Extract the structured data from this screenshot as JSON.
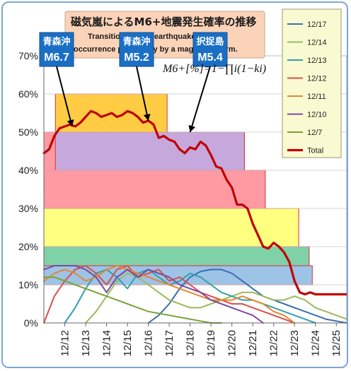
{
  "chart_data": {
    "type": "line",
    "title": "磁気嵐によるM6+地震発生確率の推移",
    "subtitle_lines": [
      "Transition of M6+ earthquake",
      "occurrence probability by a magnetic storm."
    ],
    "formula": "M6+[%]=1−∏i(1−ki)",
    "ylim": [
      0,
      70
    ],
    "y_ticks": [
      0,
      10,
      20,
      30,
      40,
      50,
      60,
      70
    ],
    "y_tick_labels": [
      "0%",
      "10%",
      "20%",
      "30%",
      "40%",
      "50%",
      "60%",
      "70%"
    ],
    "x_range": [
      0,
      14.5
    ],
    "x_ticks": [
      1,
      2,
      3,
      4,
      5,
      6,
      7,
      8,
      9,
      10,
      11,
      12,
      13,
      14
    ],
    "x_tick_labels": [
      "12/12",
      "12/13",
      "12/14",
      "12/15",
      "12/16",
      "12/17",
      "12/18",
      "12/19",
      "12/20",
      "12/21",
      "12/22",
      "12/23",
      "12/24",
      "12/25"
    ],
    "legend_position": "top-right",
    "bands": [
      {
        "x0": 0,
        "x1": 12.85,
        "y0": 10,
        "y1": 15,
        "color": "#9dc3e6"
      },
      {
        "x0": 0,
        "x1": 12.7,
        "y0": 15,
        "y1": 20,
        "color": "#7fd1a8"
      },
      {
        "x0": 0,
        "x1": 12.2,
        "y0": 20,
        "y1": 30,
        "color": "#ffff80"
      },
      {
        "x0": 0,
        "x1": 10.6,
        "y0": 30,
        "y1": 40,
        "color": "#ff9aa3"
      },
      {
        "x0": 0,
        "x1": 9.6,
        "y0": 40,
        "y1": 50,
        "color": "#ff9aa3"
      },
      {
        "x0": 0.55,
        "x1": 9.6,
        "y0": 40,
        "y1": 50,
        "color": "#c6a8dc"
      },
      {
        "x0": 0.55,
        "x1": 5.9,
        "y0": 50,
        "y1": 60,
        "color": "#ffcc44"
      }
    ],
    "series": [
      {
        "name": "12/17",
        "color": "#3a6fb0",
        "x": [
          5,
          5.5,
          6,
          6.5,
          7,
          7.5,
          8,
          8.5,
          9,
          9.5,
          10,
          10.5,
          11,
          11.5,
          12,
          12.5,
          13,
          13.5,
          14,
          14.5
        ],
        "y": [
          0,
          2,
          5,
          9,
          12,
          13.5,
          14,
          14,
          13,
          11,
          9,
          7,
          6,
          5,
          4,
          3,
          2,
          1,
          0.5,
          0
        ]
      },
      {
        "name": "12/14",
        "color": "#9bbb59",
        "x": [
          2,
          2.5,
          3,
          3.5,
          4,
          4.5,
          5,
          5.5,
          6,
          6.5,
          7,
          7.5,
          8,
          8.5,
          9,
          9.5,
          10,
          10.5,
          11,
          11.5,
          12,
          12.5,
          13,
          13.5,
          14,
          14.5
        ],
        "y": [
          0,
          3,
          7,
          11,
          13,
          12,
          10,
          8,
          6,
          5,
          4,
          4,
          5,
          6,
          7,
          8,
          8,
          7,
          6,
          6,
          7,
          6,
          4,
          3,
          2,
          1
        ]
      },
      {
        "name": "12/13",
        "color": "#31a0b0",
        "x": [
          1,
          1.5,
          2,
          2.5,
          3,
          3.5,
          4,
          4.5,
          5,
          5.5,
          6,
          6.5,
          7,
          7.5,
          8,
          8.5,
          9,
          9.5,
          10,
          10.5,
          11,
          11.5,
          12,
          12.5,
          13
        ],
        "y": [
          0,
          4,
          9,
          13,
          14,
          12,
          9,
          13,
          14,
          12,
          10,
          11,
          13,
          12,
          10,
          8,
          7,
          6,
          6,
          5,
          4,
          3,
          2,
          1,
          0
        ]
      },
      {
        "name": "12/12",
        "color": "#d9504a",
        "x": [
          0,
          0.5,
          1,
          1.5,
          2,
          2.5,
          3,
          3.5,
          4,
          4.5,
          5,
          5.5,
          6,
          6.5,
          7,
          7.5,
          8,
          8.5,
          9,
          9.5,
          10,
          10.5,
          11,
          11.5,
          12
        ],
        "y": [
          0,
          7,
          11,
          14,
          15,
          13,
          10,
          14,
          15,
          12,
          13,
          14,
          11,
          12,
          10,
          8,
          7,
          6,
          5,
          5,
          4,
          3,
          2,
          1,
          0
        ]
      },
      {
        "name": "12/11",
        "color": "#e8862d",
        "x": [
          0,
          0.5,
          1,
          1.5,
          2,
          2.5,
          3,
          3.5,
          4,
          4.5,
          5,
          5.5,
          6,
          6.5,
          7,
          7.5,
          8,
          8.5,
          9,
          9.5,
          10,
          10.5,
          11,
          11.5,
          12
        ],
        "y": [
          11,
          13,
          14,
          13,
          11,
          12,
          14,
          15,
          14,
          13,
          12,
          11,
          10,
          9,
          8,
          7,
          6,
          6,
          6,
          7,
          6,
          5,
          3,
          2,
          0
        ]
      },
      {
        "name": "12/10",
        "color": "#7a4aa0",
        "x": [
          0,
          0.5,
          1,
          1.5,
          2,
          2.5,
          3,
          3.5,
          4,
          4.5,
          5,
          5.5,
          6,
          6.5,
          7,
          7.5,
          8,
          8.5,
          9,
          9.5,
          10,
          10.5
        ],
        "y": [
          14,
          15,
          15,
          15,
          14,
          12,
          8,
          12,
          14,
          12,
          14,
          13,
          12,
          10,
          9,
          8,
          6,
          5,
          4,
          3,
          2,
          0
        ]
      },
      {
        "name": "12/7",
        "color": "#7aa23a",
        "x": [
          0,
          0.5,
          1,
          1.5,
          2,
          2.5,
          3,
          3.5,
          4,
          4.5,
          5,
          5.5,
          6,
          6.5,
          7,
          7.5,
          8,
          8.5
        ],
        "y": [
          12,
          12,
          11,
          10,
          9,
          8,
          7,
          6,
          5,
          4,
          3,
          2.5,
          2,
          1.5,
          1,
          0.5,
          0,
          0
        ]
      },
      {
        "name": "Total",
        "color": "#c00000",
        "x": [
          0,
          0.25,
          0.5,
          0.75,
          1,
          1.25,
          1.5,
          1.75,
          2,
          2.25,
          2.5,
          2.75,
          3,
          3.25,
          3.5,
          3.75,
          4,
          4.25,
          4.5,
          4.75,
          5,
          5.25,
          5.5,
          5.75,
          6,
          6.25,
          6.5,
          6.75,
          7,
          7.25,
          7.5,
          7.75,
          8,
          8.25,
          8.5,
          8.75,
          9,
          9.25,
          9.5,
          9.75,
          10,
          10.25,
          10.5,
          10.75,
          11,
          11.25,
          11.5,
          11.75,
          12,
          12.25,
          12.5,
          12.75,
          13,
          13.25,
          13.5,
          13.75,
          14,
          14.25,
          14.5
        ],
        "y": [
          44.5,
          45.5,
          49,
          51,
          51.5,
          52,
          51.5,
          52.5,
          54,
          55.5,
          55,
          54,
          54.5,
          55,
          54,
          54.5,
          55.5,
          55,
          54,
          52.5,
          53,
          52,
          48.5,
          49,
          48,
          47.5,
          45.5,
          44.5,
          46,
          45.5,
          47.5,
          46.5,
          44,
          41,
          40.5,
          37.5,
          35.5,
          31,
          31,
          30,
          26,
          23,
          20,
          19.5,
          21,
          20,
          18.5,
          16,
          11,
          8,
          7.5,
          8,
          7.5,
          7.5,
          7.5,
          7.5,
          7.5,
          7.5,
          7.5
        ]
      }
    ],
    "annotations": [
      {
        "location": "青森沖",
        "magnitude": "M6.7",
        "color": "#1a6fc4",
        "target_x": 1.35,
        "target_y": 51.5
      },
      {
        "location": "青森沖",
        "magnitude": "M5.2",
        "color": "#1a6fc4",
        "target_x": 5.0,
        "target_y": 53
      },
      {
        "location": "択捉島",
        "magnitude": "M5.4",
        "color": "#1a6fc4",
        "target_x": 7.0,
        "target_y": 50
      }
    ]
  }
}
